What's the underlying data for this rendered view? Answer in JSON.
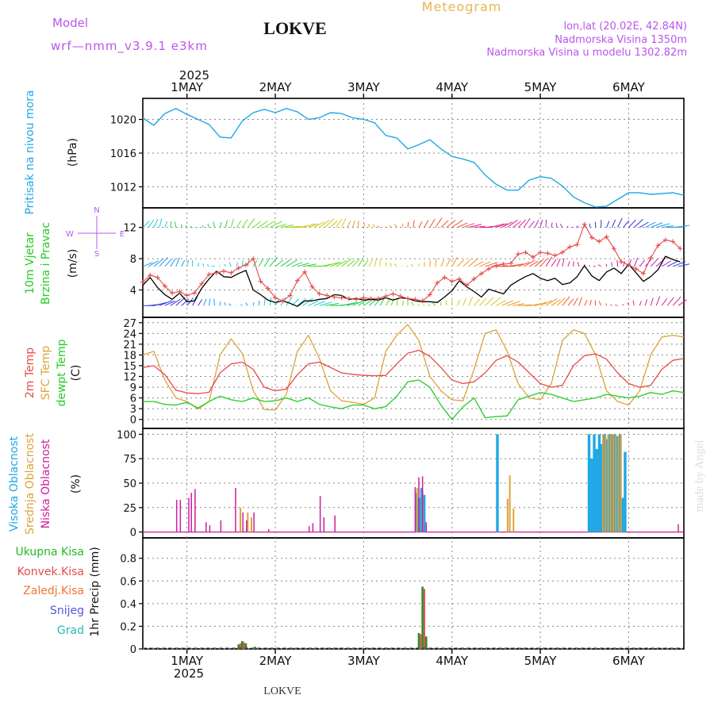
{
  "header": {
    "model_label": "Model",
    "model_name": "wrf—nmm_v3.9.1  e3km",
    "station": "LOKVE",
    "product": "Meteogram",
    "coords": "lon,lat (20.02E, 42.84N)",
    "altitude": "Nadmorska Visina 1350m",
    "model_altitude": "Nadmorska Visina u modelu 1302.82m",
    "footer_station": "LOKVE",
    "credit": "made by Angel"
  },
  "colors": {
    "pressure": "#1fa8e6",
    "temp2m": "#e64b4b",
    "sfc": "#dca33b",
    "dew": "#22cc22",
    "precip": "#2e8b2e",
    "conv": "#e64b4b",
    "model": "#bb55ee",
    "windspeed": "#000000",
    "gust": "#e64b4b",
    "cloud_high": "#1fa8e6",
    "cloud_mid": "#dca33b",
    "cloud_low": "#cc1f9d",
    "title_gold": "#e8b554"
  },
  "time_axis": {
    "year": "2025",
    "days": [
      "1MAY",
      "2MAY",
      "3MAY",
      "4MAY",
      "5MAY",
      "6MAY"
    ],
    "day_offsets_h": [
      12,
      36,
      60,
      84,
      108,
      132
    ],
    "range_h": [
      0,
      147
    ]
  },
  "chart_data": [
    {
      "type": "line",
      "id": "pressure",
      "ylabel_main": "Pritisak na nivou mora",
      "ylabel_unit": "(hPa)",
      "yticks": [
        1012,
        1016,
        1020
      ],
      "ylim": [
        1009.5,
        1022.5
      ],
      "series": [
        {
          "name": "Pritisak na nivou mora",
          "x": [
            0,
            3,
            6,
            9,
            12,
            15,
            18,
            21,
            24,
            27,
            30,
            33,
            36,
            39,
            42,
            45,
            48,
            51,
            54,
            57,
            60,
            63,
            66,
            69,
            72,
            75,
            78,
            81,
            84,
            87,
            90,
            93,
            96,
            99,
            102,
            105,
            108,
            111,
            114,
            117,
            120,
            123,
            126,
            129,
            132,
            135,
            138,
            141,
            144,
            147
          ],
          "y": [
            1020.2,
            1019.3,
            1020.7,
            1021.3,
            1020.6,
            1020.0,
            1019.4,
            1017.9,
            1017.8,
            1019.8,
            1020.8,
            1021.2,
            1020.8,
            1021.3,
            1020.9,
            1020.0,
            1020.2,
            1020.8,
            1020.7,
            1020.2,
            1020.0,
            1019.6,
            1018.1,
            1017.8,
            1016.5,
            1017.0,
            1017.6,
            1016.5,
            1015.6,
            1015.3,
            1014.9,
            1013.4,
            1012.3,
            1011.6,
            1011.6,
            1012.8,
            1013.2,
            1013.0,
            1012.1,
            1010.8,
            1010.1,
            1009.6,
            1009.7,
            1010.5,
            1011.3,
            1011.3,
            1011.1,
            1011.2,
            1011.3,
            1011.0
          ]
        }
      ]
    },
    {
      "type": "line",
      "id": "wind",
      "ylabel_main": "10m Vjetar",
      "ylabel_sub": "Brzina i Pravac",
      "ylabel_unit": "(m/s)",
      "yticks": [
        4,
        8,
        12
      ],
      "ylim": [
        0.5,
        14.5
      ],
      "compass": {
        "n": "N",
        "w": "W",
        "e": "E",
        "s": "S"
      },
      "series": [
        {
          "name": "Brzina",
          "x": [
            0,
            2,
            4,
            6,
            8,
            10,
            12,
            14,
            16,
            18,
            20,
            22,
            24,
            26,
            28,
            30,
            32,
            34,
            36,
            38,
            40,
            42,
            44,
            46,
            48,
            50,
            52,
            54,
            56,
            58,
            60,
            62,
            64,
            66,
            68,
            70,
            72,
            74,
            76,
            78,
            80,
            82,
            84,
            86,
            88,
            90,
            92,
            94,
            96,
            98,
            100,
            102,
            104,
            106,
            108,
            110,
            112,
            114,
            116,
            118,
            120,
            122,
            124,
            126,
            128,
            130,
            132,
            134,
            136,
            138,
            140,
            142,
            144,
            146
          ],
          "y": [
            4.6,
            5.6,
            4.3,
            3.4,
            2.8,
            3.6,
            2.5,
            2.6,
            4.2,
            5.4,
            6.4,
            5.7,
            5.6,
            6.1,
            6.5,
            4.0,
            3.4,
            2.7,
            2.4,
            2.6,
            2.3,
            1.9,
            2.6,
            2.6,
            2.8,
            2.9,
            3.4,
            3.3,
            2.8,
            2.9,
            2.7,
            2.8,
            2.7,
            3.0,
            2.7,
            3.0,
            2.9,
            2.6,
            2.5,
            2.5,
            2.4,
            3.1,
            3.9,
            5.2,
            4.4,
            3.8,
            3.1,
            4.1,
            3.8,
            3.5,
            4.6,
            5.2,
            5.7,
            6.1,
            5.5,
            5.2,
            5.5,
            4.7,
            4.9,
            5.7,
            7.1,
            5.8,
            5.2,
            6.3,
            6.8,
            6.1,
            7.3,
            6.2,
            5.1,
            5.7,
            6.6,
            8.3,
            7.9,
            7.6
          ]
        },
        {
          "name": "Udari",
          "x": [
            0,
            2,
            4,
            6,
            8,
            10,
            12,
            14,
            16,
            18,
            20,
            22,
            24,
            26,
            28,
            30,
            32,
            34,
            36,
            38,
            40,
            42,
            44,
            46,
            48,
            50,
            52,
            54,
            56,
            58,
            60,
            62,
            64,
            66,
            68,
            70,
            72,
            74,
            76,
            78,
            80,
            82,
            84,
            86,
            88,
            90,
            92,
            94,
            96,
            98,
            100,
            102,
            104,
            106,
            108,
            110,
            112,
            114,
            116,
            118,
            120,
            122,
            124,
            126,
            128,
            130,
            132,
            134,
            136,
            138,
            140,
            142,
            144,
            146
          ],
          "y": [
            5.0,
            5.9,
            5.6,
            4.5,
            3.6,
            3.8,
            3.3,
            3.6,
            4.8,
            6.0,
            6.2,
            6.4,
            6.2,
            6.8,
            7.2,
            8.0,
            5.1,
            4.2,
            3.0,
            2.6,
            3.3,
            5.2,
            6.3,
            4.4,
            3.5,
            3.3,
            3.1,
            3.0,
            2.9,
            2.8,
            3.0,
            2.9,
            2.9,
            3.2,
            3.5,
            3.2,
            2.9,
            2.8,
            2.6,
            3.4,
            4.9,
            5.6,
            5.1,
            5.4,
            4.6,
            5.4,
            6.1,
            6.7,
            7.1,
            7.3,
            7.4,
            8.6,
            8.8,
            8.2,
            8.8,
            8.7,
            8.4,
            8.8,
            9.5,
            9.8,
            12.4,
            10.7,
            10.2,
            10.8,
            9.3,
            7.6,
            7.2,
            6.7,
            6.1,
            8.1,
            9.7,
            10.4,
            10.2,
            9.3
          ]
        }
      ]
    },
    {
      "type": "line",
      "id": "temperature",
      "ylabel_a": "2m Temp",
      "ylabel_b": "SFC Temp",
      "ylabel_c": "dewpt Temp",
      "ylabel_unit": "(C)",
      "yticks": [
        0,
        3,
        6,
        9,
        12,
        15,
        18,
        21,
        24,
        27
      ],
      "ylim": [
        -2.5,
        28.5
      ],
      "series": [
        {
          "name": "2m Temp",
          "x": [
            0,
            3,
            6,
            9,
            12,
            15,
            18,
            21,
            24,
            27,
            30,
            33,
            36,
            39,
            42,
            45,
            48,
            51,
            54,
            57,
            60,
            63,
            66,
            69,
            72,
            75,
            78,
            81,
            84,
            87,
            90,
            93,
            96,
            99,
            102,
            105,
            108,
            111,
            114,
            117,
            120,
            123,
            126,
            129,
            132,
            135,
            138,
            141,
            144,
            147
          ],
          "y": [
            14.5,
            15.0,
            12.5,
            8.2,
            7.4,
            7.2,
            7.6,
            13.0,
            15.5,
            16.0,
            14.0,
            9.0,
            8.0,
            8.5,
            12.5,
            15.5,
            16.0,
            14.5,
            13.0,
            12.6,
            12.3,
            12.2,
            12.3,
            15.5,
            18.5,
            19.3,
            17.6,
            14.5,
            11.0,
            10.0,
            10.5,
            13.0,
            16.5,
            17.8,
            16.0,
            13.0,
            10.0,
            9.0,
            9.5,
            15.0,
            17.8,
            18.3,
            16.8,
            13.0,
            10.0,
            9.0,
            9.5,
            14.0,
            16.5,
            17.0
          ]
        },
        {
          "name": "SFC Temp",
          "x": [
            0,
            3,
            6,
            9,
            12,
            15,
            18,
            21,
            24,
            27,
            30,
            33,
            36,
            39,
            42,
            45,
            48,
            51,
            54,
            57,
            60,
            63,
            66,
            69,
            72,
            75,
            78,
            81,
            84,
            87,
            90,
            93,
            96,
            99,
            102,
            105,
            108,
            111,
            114,
            117,
            120,
            123,
            126,
            129,
            132,
            135,
            138,
            141,
            144,
            147
          ],
          "y": [
            18.0,
            19.0,
            11.0,
            6.0,
            5.0,
            2.9,
            5.0,
            18.0,
            22.5,
            18.5,
            8.0,
            2.8,
            2.6,
            7.0,
            19.0,
            23.5,
            17.0,
            8.0,
            5.2,
            4.8,
            4.2,
            6.0,
            19.0,
            23.5,
            26.5,
            22.0,
            12.0,
            8.0,
            5.5,
            5.2,
            14.0,
            24.0,
            25.0,
            19.0,
            10.0,
            6.0,
            5.5,
            10.0,
            22.0,
            25.0,
            24.0,
            18.0,
            8.0,
            5.0,
            4.0,
            8.0,
            18.0,
            23.0,
            23.5,
            23.0
          ]
        },
        {
          "name": "dewpt Temp",
          "x": [
            0,
            3,
            6,
            9,
            12,
            15,
            18,
            21,
            24,
            27,
            30,
            33,
            36,
            39,
            42,
            45,
            48,
            51,
            54,
            57,
            60,
            63,
            66,
            69,
            72,
            75,
            78,
            81,
            84,
            87,
            90,
            93,
            96,
            99,
            102,
            105,
            108,
            111,
            114,
            117,
            120,
            123,
            126,
            129,
            132,
            135,
            138,
            141,
            144,
            147
          ],
          "y": [
            5.0,
            5.0,
            4.2,
            4.0,
            4.8,
            3.2,
            5.0,
            6.5,
            5.5,
            5.0,
            6.0,
            5.0,
            5.2,
            6.0,
            5.0,
            6.0,
            4.2,
            3.5,
            3.0,
            4.0,
            4.0,
            3.0,
            3.6,
            6.5,
            10.5,
            11.0,
            9.0,
            4.0,
            0.0,
            3.5,
            6.0,
            0.5,
            0.8,
            1.0,
            5.5,
            6.5,
            7.5,
            7.0,
            6.0,
            5.0,
            5.5,
            6.0,
            7.0,
            6.5,
            6.0,
            6.5,
            7.5,
            7.0,
            8.0,
            7.5
          ]
        }
      ]
    },
    {
      "type": "bar",
      "id": "cloud",
      "ylabel_a": "Visoka Oblacnost",
      "ylabel_b": "Srednja Oblacnost",
      "ylabel_c": "Niska Oblacnost",
      "ylabel_unit": "(%)",
      "yticks": [
        0,
        25,
        50,
        75,
        100
      ],
      "ylim": [
        -6,
        106
      ],
      "series": [
        {
          "name": "Visoka Oblacnost",
          "x": [
            74.6,
            75.3,
            76.0,
            76.7,
            96.6,
            121.5,
            122.2,
            122.9,
            123.6,
            124.3,
            125.0,
            125.7,
            126.4,
            127.1,
            127.8,
            128.5,
            129.2,
            129.9,
            130.6,
            131.3
          ],
          "y": [
            40,
            35,
            45,
            38,
            100,
            100,
            75,
            100,
            85,
            100,
            90,
            100,
            95,
            100,
            100,
            100,
            98,
            100,
            35,
            82
          ]
        },
        {
          "name": "Srednja Oblacnost",
          "x": [
            26.3,
            28.3,
            29.3,
            74.3,
            75.8,
            98.9,
            99.5,
            100.5,
            124.8,
            125.5,
            126.2,
            126.9,
            127.6,
            128.3,
            129.0,
            129.7
          ],
          "y": [
            25,
            20,
            15,
            45,
            42,
            34,
            58,
            24,
            100,
            98,
            100,
            100,
            100,
            100,
            98,
            100
          ]
        },
        {
          "name": "Niska Oblacnost",
          "x": [
            9.2,
            10.2,
            12.5,
            13.2,
            14.2,
            17.2,
            18.2,
            21.2,
            25.2,
            27.2,
            28.2,
            30.2,
            34.2,
            45.2,
            46.2,
            48.2,
            49.2,
            52.2,
            74.0,
            75.0,
            76.0,
            77.0,
            145.5
          ],
          "y": [
            33,
            33,
            35,
            40,
            44,
            10,
            7,
            12,
            45,
            20,
            12,
            20,
            3,
            6,
            9,
            37,
            15,
            17,
            46,
            56,
            57,
            10,
            8
          ]
        }
      ]
    },
    {
      "type": "bar",
      "id": "precip",
      "ylabel_a": "Ukupna Kisa",
      "ylabel_b": "Konvek.Kisa",
      "ylabel_c": "Zaledj.Kisa",
      "ylabel_d": "Snijeg",
      "ylabel_e": "Grad",
      "ylabel_unit": "1hr Precip (mm)",
      "yticks": [
        0,
        0.2,
        0.4,
        0.6,
        0.8
      ],
      "ylim": [
        0,
        0.98
      ],
      "series": [
        {
          "name": "Ukupna Kisa",
          "x": [
            26.0,
            27.0,
            28.0,
            30.5,
            75.0,
            76.0,
            77.0
          ],
          "y": [
            0.04,
            0.07,
            0.05,
            0.02,
            0.14,
            0.55,
            0.11
          ]
        },
        {
          "name": "Konvek.Kisa",
          "x": [
            26.5,
            27.5,
            75.5,
            76.5
          ],
          "y": [
            0.05,
            0.06,
            0.13,
            0.53
          ]
        }
      ]
    }
  ]
}
